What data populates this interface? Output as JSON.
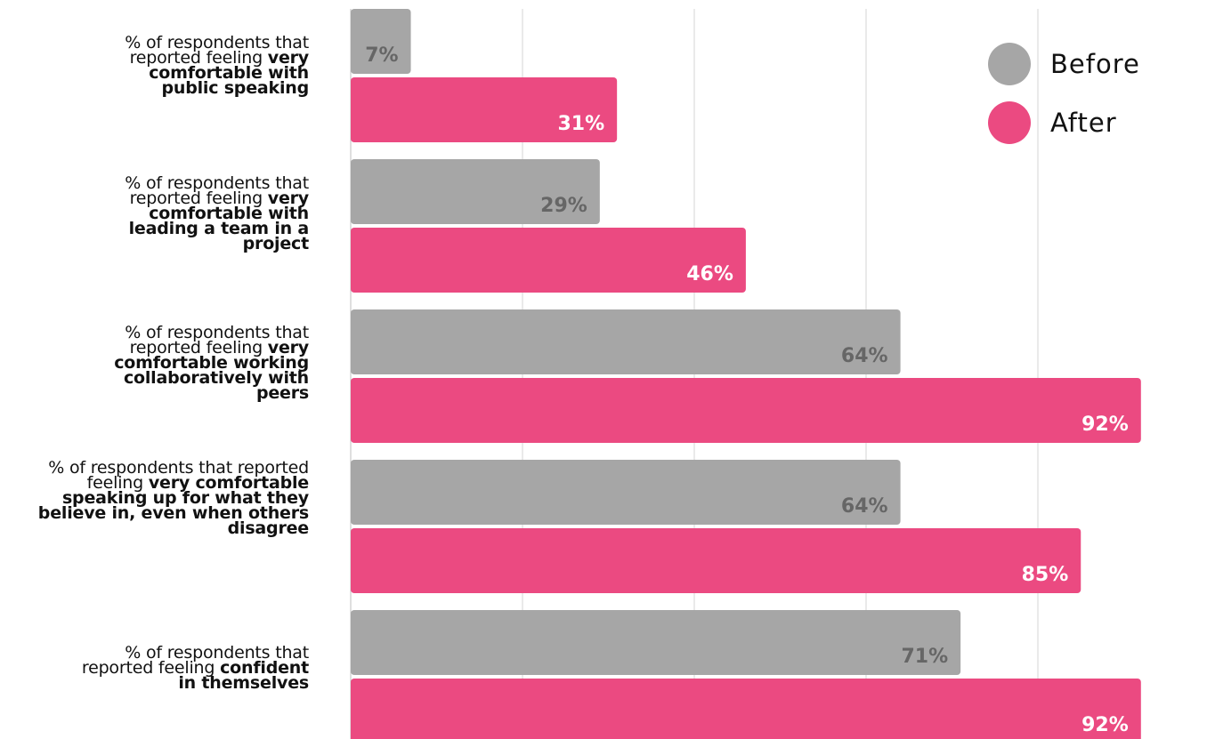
{
  "chart_data": {
    "type": "bar",
    "orientation": "horizontal",
    "categories": [
      {
        "prefix": "% of respondents that reported feeling",
        "emphasis": "very comfortable with public speaking"
      },
      {
        "prefix": "% of respondents that reported feeling",
        "emphasis": "very comfortable with leading a team in a project"
      },
      {
        "prefix": "% of respondents that reported feeling",
        "emphasis": "very comfortable working collaboratively with peers"
      },
      {
        "prefix": "% of respondents that reported feeling",
        "emphasis": "very comfortable speaking up for what they believe in, even when others disagree"
      },
      {
        "prefix": "% of respondents that reported feeling",
        "emphasis": "confident in themselves"
      }
    ],
    "series": [
      {
        "name": "Before",
        "color": "#a6a6a6",
        "label_color": "#666666",
        "values": [
          7,
          29,
          64,
          64,
          71
        ],
        "labels": [
          "7%",
          "29%",
          "64%",
          "64%",
          "71%"
        ]
      },
      {
        "name": "After",
        "color": "#eb4a81",
        "label_color": "#ffffff",
        "values": [
          31,
          46,
          92,
          85,
          92
        ],
        "labels": [
          "31%",
          "46%",
          "92%",
          "85%",
          "92%"
        ]
      }
    ],
    "xlim": [
      0,
      100
    ],
    "grid": true,
    "legend_position": "top-right"
  }
}
